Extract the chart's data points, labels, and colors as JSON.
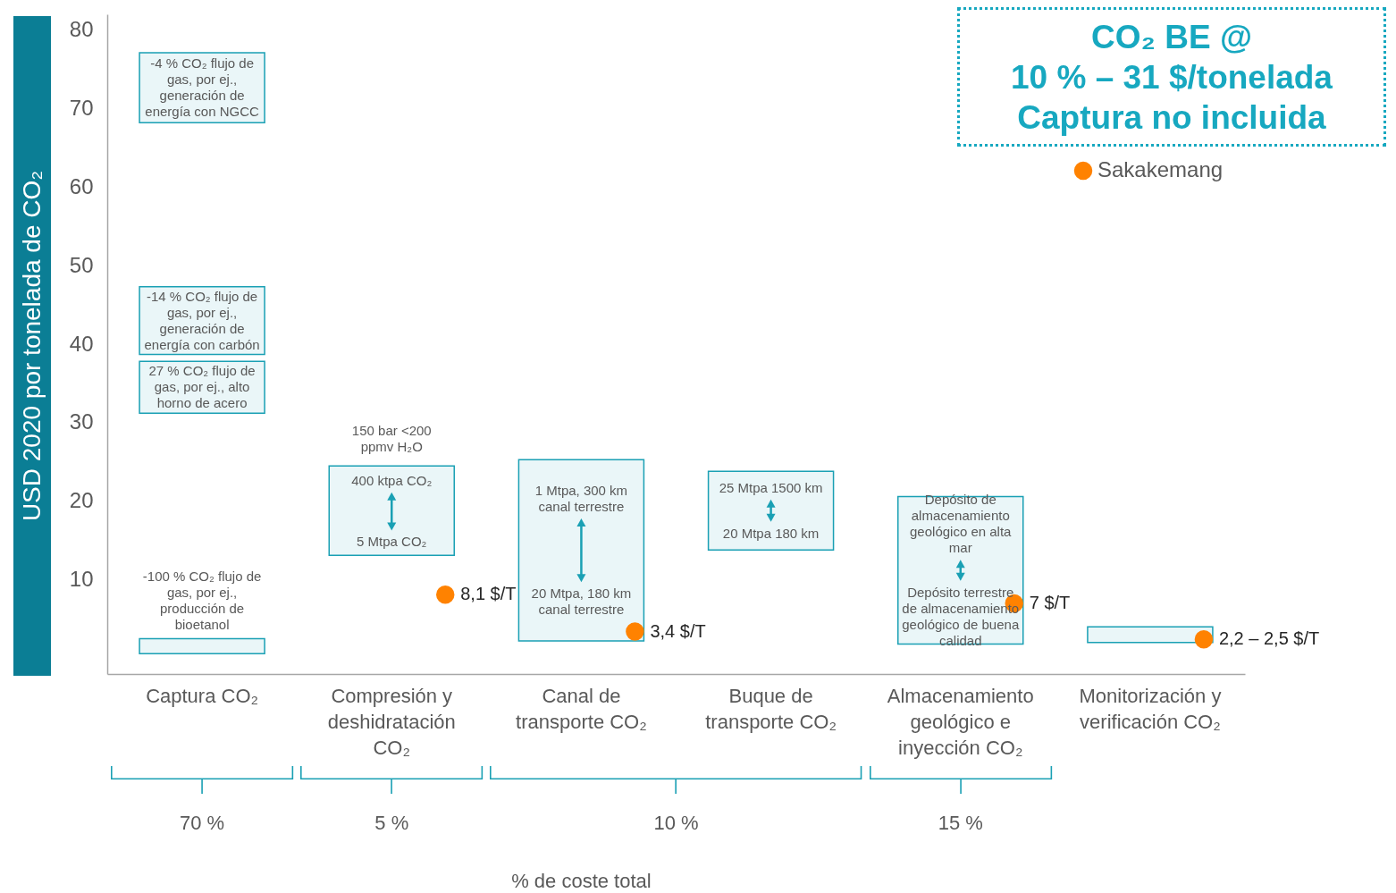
{
  "chart_data": {
    "type": "bar",
    "title": "CO₂ BE @\n10 % – 31 $/tonelada\nCaptura no incluida",
    "ylabel": "USD 2020 por tonelada de CO₂",
    "categories": [
      "Captura CO₂",
      "Compresión y deshidratación CO₂",
      "Canal de transporte CO₂",
      "Buque de transporte CO₂",
      "Almacenamiento geológico e inyección CO₂",
      "Monitorización y verificación CO₂"
    ],
    "series": [
      {
        "color": "#eaf6f8",
        "base": [
          0.6,
          13.1,
          2.2,
          13.8,
          1.8,
          2.0
        ],
        "values": [
          1.9,
          11.4,
          23.1,
          10.0,
          18.8,
          2.0
        ]
      },
      {
        "color": "#eaf6f8",
        "base": [
          31.2,
          null,
          null,
          null,
          null,
          null
        ],
        "values": [
          6.6,
          null,
          null,
          null,
          null,
          null
        ]
      },
      {
        "color": "#eaf6f8",
        "base": [
          38.7,
          null,
          null,
          null,
          null,
          null
        ],
        "values": [
          8.6,
          null,
          null,
          null,
          null,
          null
        ]
      },
      {
        "color": "#eaf6f8",
        "base": [
          68.2,
          null,
          null,
          null,
          null,
          null
        ],
        "values": [
          8.9,
          null,
          null,
          null,
          null,
          null
        ]
      },
      {
        "type": "scatter",
        "name": "Sakakemang",
        "color": "#ff8200",
        "values": [
          null,
          8.1,
          3.4,
          null,
          7,
          2.4
        ],
        "value_labels": [
          null,
          "8,1 $/T",
          "3,4 $/T",
          null,
          "7 $/T",
          "2,2 – 2,5 $/T"
        ]
      }
    ],
    "ylim": [
      -2,
      82
    ],
    "yticks": [
      10,
      20,
      30,
      40,
      50,
      60,
      70,
      80
    ],
    "legend": "top right",
    "annotations": [
      "-4 % CO₂ flujo de\ngas, por ej.,\ngeneración de\nenergía con NGCC",
      "-14 % CO₂ flujo de\ngas, por ej.,\ngeneración de\nenergía con carbón",
      "27 % CO₂ flujo de\ngas, por ej., alto\nhorno de acero",
      "-100 % CO₂ flujo de\ngas, por ej.,\nproducción de\nbioetanol",
      "150 bar <200\nppmv H₂O",
      "400 ktpa CO₂",
      "5 Mtpa CO₂",
      "1 Mtpa, 300 km\ncanal terrestre",
      "20 Mtpa, 180 km\ncanal terrestre",
      "25 Mtpa 1500 km",
      "20 Mtpa 180 km",
      "Depósito de\nalmacenamiento\ngeológico en alta\nmar",
      "Depósito terrestre\nde almacenamiento\ngeológico de buena\ncalidad",
      "70 %",
      "5 %",
      "10 %",
      "15 %",
      "% de coste total"
    ]
  }
}
